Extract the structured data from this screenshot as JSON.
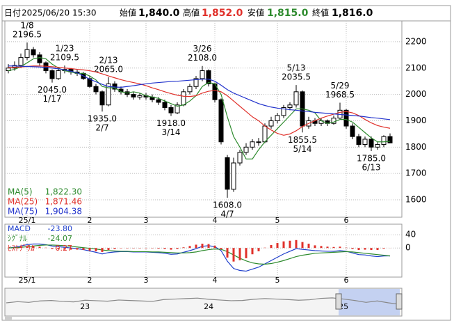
{
  "header": {
    "date_label": "日付",
    "datetime": "2025/06/20 15:30",
    "open_label": "始値",
    "open": {
      "value": 1840,
      "label": "1,840.0"
    },
    "high_label": "高値",
    "high": {
      "value": 1852,
      "label": "1,852.0"
    },
    "low_label": "安値",
    "low": {
      "value": 1815,
      "label": "1,815.0"
    },
    "close_label": "終値",
    "close": {
      "value": 1816,
      "label": "1,816.0"
    }
  },
  "chart_data": [
    {
      "type": "candlestick",
      "categories": [
        null,
        null,
        null,
        "25/1",
        null,
        null,
        null,
        null,
        null,
        null,
        null,
        null,
        null,
        "2",
        null,
        null,
        null,
        null,
        null,
        null,
        null,
        null,
        "3",
        null,
        null,
        null,
        null,
        null,
        null,
        null,
        null,
        null,
        null,
        "4",
        null,
        null,
        null,
        null,
        null,
        null,
        null,
        null,
        null,
        "5",
        null,
        null,
        null,
        null,
        null,
        null,
        null,
        null,
        null,
        null,
        "6",
        null,
        null,
        null,
        null,
        null,
        null,
        null
      ],
      "open": [
        2090,
        2100,
        2110,
        2140,
        2170,
        2150,
        2120,
        2090,
        2060,
        2090,
        2095,
        2085,
        2080,
        2060,
        2030,
        2010,
        1960,
        2040,
        2020,
        2010,
        2000,
        1990,
        1995,
        1990,
        1980,
        1970,
        1950,
        1930,
        1960,
        2010,
        2030,
        2060,
        2090,
        2040,
        1980,
        1760,
        1640,
        1740,
        1780,
        1800,
        1820,
        1820,
        1880,
        1900,
        1920,
        1950,
        1960,
        2010,
        1880,
        1900,
        1890,
        1900,
        1890,
        1910,
        1940,
        1880,
        1840,
        1810,
        1830,
        1800,
        1810,
        1840
      ],
      "high": [
        2115,
        2125,
        2155,
        2196.5,
        2180,
        2160,
        2125,
        2095,
        2100,
        2109.5,
        2100,
        2095,
        2085,
        2070,
        2040,
        2015,
        2065,
        2050,
        2030,
        2020,
        2010,
        2005,
        2005,
        2000,
        1990,
        1980,
        1960,
        1970,
        2020,
        2040,
        2070,
        2108,
        2095,
        2045,
        1985,
        1770,
        1760,
        1790,
        1815,
        1830,
        1835,
        1890,
        1915,
        1930,
        1960,
        1970,
        2035.5,
        2015,
        1915,
        1910,
        1910,
        1905,
        1920,
        1968.5,
        1945,
        1890,
        1850,
        1840,
        1840,
        1820,
        1845,
        1852
      ],
      "low": [
        2080,
        2090,
        2100,
        2130,
        2140,
        2110,
        2080,
        2045,
        2055,
        2080,
        2075,
        2070,
        2055,
        2025,
        2000,
        1935,
        1955,
        2010,
        2000,
        1990,
        1980,
        1980,
        1980,
        1970,
        1960,
        1940,
        1918,
        1925,
        1955,
        2000,
        2020,
        2050,
        2030,
        1970,
        1810,
        1608,
        1630,
        1730,
        1770,
        1790,
        1805,
        1815,
        1870,
        1890,
        1910,
        1940,
        1950,
        1855.5,
        1870,
        1880,
        1880,
        1880,
        1885,
        1905,
        1870,
        1830,
        1800,
        1800,
        1785,
        1790,
        1800,
        1815
      ],
      "close": [
        2100,
        2110,
        2140,
        2170,
        2150,
        2120,
        2090,
        2060,
        2090,
        2095,
        2085,
        2080,
        2060,
        2030,
        2010,
        1960,
        2040,
        2020,
        2010,
        2000,
        1990,
        1995,
        1990,
        1980,
        1970,
        1950,
        1930,
        1960,
        2010,
        2030,
        2060,
        2090,
        2040,
        1980,
        1820,
        1640,
        1740,
        1780,
        1800,
        1820,
        1820,
        1880,
        1900,
        1920,
        1950,
        1960,
        2010,
        1880,
        1900,
        1890,
        1900,
        1890,
        1910,
        1940,
        1880,
        1840,
        1810,
        1830,
        1800,
        1810,
        1840,
        1816
      ],
      "high_labels": [
        null,
        null,
        null,
        "2196.5",
        null,
        null,
        null,
        null,
        null,
        "2109.5",
        null,
        null,
        null,
        null,
        null,
        null,
        "2065.0",
        null,
        null,
        null,
        null,
        null,
        null,
        null,
        null,
        null,
        null,
        null,
        null,
        null,
        null,
        "2108.0",
        null,
        null,
        null,
        null,
        null,
        null,
        null,
        null,
        null,
        null,
        null,
        null,
        null,
        null,
        "2035.5",
        null,
        null,
        null,
        null,
        null,
        null,
        "1968.5",
        null,
        null,
        null,
        null,
        null,
        null,
        null,
        null
      ],
      "high_dates": [
        null,
        null,
        null,
        "1/8",
        null,
        null,
        null,
        null,
        null,
        "1/23",
        null,
        null,
        null,
        null,
        null,
        null,
        "2/13",
        null,
        null,
        null,
        null,
        null,
        null,
        null,
        null,
        null,
        null,
        null,
        null,
        null,
        null,
        "3/26",
        null,
        null,
        null,
        null,
        null,
        null,
        null,
        null,
        null,
        null,
        null,
        null,
        null,
        null,
        "5/13",
        null,
        null,
        null,
        null,
        null,
        null,
        "5/29",
        null,
        null,
        null,
        null,
        null,
        null,
        null,
        null
      ],
      "low_labels": [
        null,
        null,
        null,
        null,
        null,
        null,
        null,
        "2045.0",
        null,
        null,
        null,
        null,
        null,
        null,
        null,
        "1935.0",
        null,
        null,
        null,
        null,
        null,
        null,
        null,
        null,
        null,
        null,
        "1918.0",
        null,
        null,
        null,
        null,
        null,
        null,
        null,
        null,
        "1608.0",
        null,
        null,
        null,
        null,
        null,
        null,
        null,
        null,
        null,
        null,
        null,
        "1855.5",
        null,
        null,
        null,
        null,
        null,
        null,
        null,
        null,
        null,
        null,
        "1785.0",
        null,
        null,
        null
      ],
      "low_dates": [
        null,
        null,
        null,
        null,
        null,
        null,
        null,
        "1/17",
        null,
        null,
        null,
        null,
        null,
        null,
        null,
        "2/7",
        null,
        null,
        null,
        null,
        null,
        null,
        null,
        null,
        null,
        null,
        "3/14",
        null,
        null,
        null,
        null,
        null,
        null,
        null,
        null,
        "4/7",
        null,
        null,
        null,
        null,
        null,
        null,
        null,
        null,
        null,
        null,
        null,
        "5/14",
        null,
        null,
        null,
        null,
        null,
        null,
        null,
        null,
        null,
        null,
        "6/13",
        null,
        null,
        null
      ],
      "series": [
        {
          "name": "MA(5)",
          "color": "#2e8b2e",
          "last_label": "1,822.30",
          "values": [
            2090,
            2095,
            2105,
            2120,
            2135,
            2140,
            2135,
            2115,
            2100,
            2090,
            2085,
            2080,
            2080,
            2070,
            2055,
            2030,
            2025,
            2025,
            2010,
            2005,
            2010,
            2005,
            1995,
            1990,
            1985,
            1975,
            1965,
            1955,
            1960,
            1975,
            1995,
            2030,
            2045,
            2040,
            2000,
            1915,
            1840,
            1800,
            1755,
            1755,
            1790,
            1820,
            1845,
            1870,
            1895,
            1920,
            1945,
            1945,
            1940,
            1930,
            1900,
            1890,
            1895,
            1905,
            1905,
            1895,
            1875,
            1855,
            1835,
            1820,
            1820,
            1822.3
          ]
        },
        {
          "name": "MA(25)",
          "color": "#e0302a",
          "last_label": "1,871.46",
          "values": [
            2102,
            2103,
            2104,
            2106,
            2108,
            2108,
            2107,
            2105,
            2103,
            2100,
            2098,
            2095,
            2093,
            2090,
            2085,
            2078,
            2070,
            2063,
            2056,
            2050,
            2045,
            2040,
            2033,
            2025,
            2018,
            2010,
            2003,
            1997,
            1993,
            1992,
            1995,
            2005,
            2012,
            2015,
            2010,
            1995,
            1975,
            1955,
            1935,
            1915,
            1900,
            1880,
            1865,
            1852,
            1845,
            1850,
            1862,
            1878,
            1890,
            1900,
            1910,
            1918,
            1925,
            1932,
            1935,
            1930,
            1920,
            1905,
            1892,
            1882,
            1876,
            1871.46
          ]
        },
        {
          "name": "MA(75)",
          "color": "#2233cc",
          "last_label": "1,904.38",
          "values": [
            2108,
            2108,
            2107,
            2106,
            2105,
            2104,
            2102,
            2100,
            2097,
            2093,
            2088,
            2082,
            2070,
            2058,
            2048,
            2038,
            2030,
            2028,
            2027,
            2030,
            2033,
            2037,
            2040,
            2043,
            2045,
            2047,
            2049,
            2050,
            2052,
            2054,
            2056,
            2058,
            2058,
            2050,
            2035,
            2018,
            2005,
            1995,
            1985,
            1975,
            1965,
            1958,
            1952,
            1948,
            1945,
            1942,
            1940,
            1937,
            1935,
            1932,
            1930,
            1928,
            1926,
            1924,
            1922,
            1920,
            1918,
            1915,
            1912,
            1910,
            1907,
            1904.38
          ]
        }
      ],
      "up_color": "#ffffff",
      "down_color": "#000000",
      "ylim": [
        1534,
        2279
      ],
      "yticks": [
        1600,
        1700,
        1800,
        1900,
        2000,
        2100,
        2200
      ],
      "grid": true
    },
    {
      "type": "macd",
      "categories": [
        null,
        null,
        null,
        "25/1",
        null,
        null,
        null,
        null,
        null,
        null,
        null,
        null,
        null,
        "2",
        null,
        null,
        null,
        null,
        null,
        null,
        null,
        null,
        "3",
        null,
        null,
        null,
        null,
        null,
        null,
        null,
        null,
        null,
        null,
        "4",
        null,
        null,
        null,
        null,
        null,
        null,
        null,
        null,
        null,
        "5",
        null,
        null,
        null,
        null,
        null,
        null,
        null,
        null,
        null,
        null,
        "6",
        null,
        null,
        null,
        null,
        null,
        null,
        null
      ],
      "series": [
        {
          "name": "MACD",
          "color": "#1f3fcc",
          "last_label": "-23.80",
          "values": [
            0,
            2,
            6,
            10,
            12,
            12,
            10,
            6,
            4,
            2,
            0,
            -2,
            -5,
            -9,
            -13,
            -18,
            -14,
            -12,
            -11,
            -11,
            -12,
            -12,
            -12,
            -13,
            -14,
            -16,
            -19,
            -18,
            -13,
            -8,
            -2,
            5,
            7,
            4,
            -8,
            -40,
            -62,
            -68,
            -70,
            -64,
            -58,
            -48,
            -38,
            -28,
            -18,
            -10,
            -2,
            -4,
            -6,
            -8,
            -9,
            -10,
            -10,
            -8,
            -10,
            -15,
            -20,
            -21,
            -24,
            -26,
            -24,
            -23.8
          ]
        },
        {
          "name": "ｼｸﾞﾅﾙ",
          "color": "#2e8b2e",
          "last_label": "-24.07",
          "values": [
            0,
            1,
            2,
            4,
            6,
            8,
            9,
            9,
            8,
            7,
            5,
            3,
            1,
            -1,
            -3,
            -6,
            -8,
            -9,
            -10,
            -10,
            -11,
            -11,
            -11,
            -12,
            -12,
            -13,
            -14,
            -15,
            -15,
            -14,
            -12,
            -8,
            -5,
            -3,
            -4,
            -11,
            -21,
            -31,
            -39,
            -45,
            -48,
            -49,
            -47,
            -43,
            -38,
            -32,
            -26,
            -22,
            -19,
            -16,
            -15,
            -14,
            -13,
            -12,
            -11,
            -12,
            -14,
            -16,
            -18,
            -20,
            -22,
            -24.07
          ]
        },
        {
          "name": "ﾋｽﾄｸﾞﾗﾑ",
          "type": "bar",
          "color": "#e0302a",
          "last_label": "0.27",
          "values": [
            0,
            1,
            4,
            6,
            6,
            4,
            1,
            -3,
            -4,
            -5,
            -5,
            -5,
            -6,
            -8,
            -10,
            -12,
            -6,
            -3,
            -1,
            -1,
            -1,
            -1,
            -1,
            -1,
            -2,
            -3,
            -5,
            -3,
            2,
            6,
            10,
            13,
            12,
            7,
            -4,
            -29,
            -41,
            -37,
            -31,
            -19,
            -10,
            1,
            9,
            15,
            20,
            22,
            24,
            18,
            13,
            8,
            6,
            4,
            3,
            4,
            1,
            -3,
            -6,
            -5,
            -6,
            -6,
            -2,
            0.27
          ]
        }
      ],
      "ylim": [
        -88,
        72
      ],
      "yticks": [
        40,
        0
      ],
      "grid": true
    },
    {
      "type": "area",
      "categories": [
        null,
        null,
        null,
        null,
        null,
        null,
        null,
        "23",
        null,
        null,
        null,
        null,
        null,
        null,
        null,
        null,
        null,
        null,
        "24",
        null,
        null,
        null,
        null,
        null,
        null,
        null,
        null,
        null,
        null,
        null,
        "25",
        null,
        null,
        null,
        null,
        null
      ],
      "values": [
        1900,
        1950,
        1920,
        1980,
        2000,
        1960,
        1940,
        2010,
        1990,
        1970,
        2020,
        2000,
        1980,
        1960,
        2040,
        2060,
        2080,
        2100,
        2050,
        2020,
        1990,
        2000,
        2050,
        2080,
        2060,
        2040,
        2010,
        2030,
        2090,
        2110,
        2060,
        2000,
        1920,
        1980,
        1900,
        1840
      ],
      "color": "#888888",
      "ylim": [
        1400,
        2400
      ]
    }
  ]
}
